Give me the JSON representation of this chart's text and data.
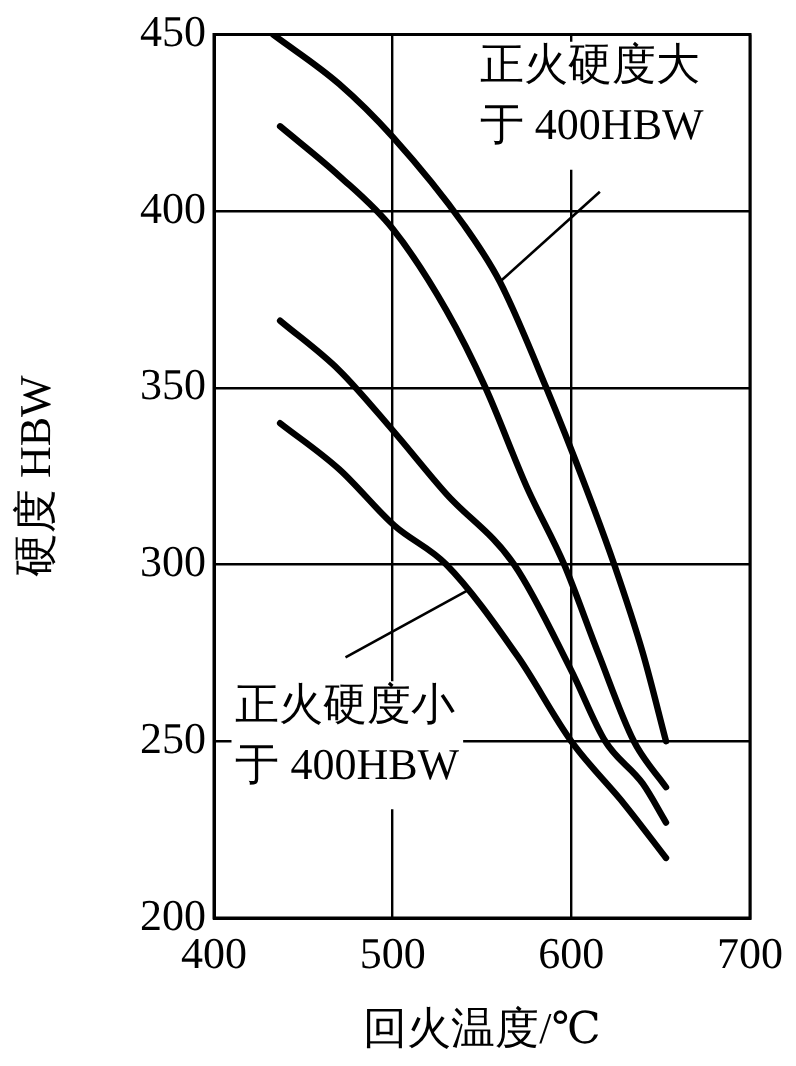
{
  "chart_data": {
    "type": "line",
    "xlabel": "回火温度/℃",
    "ylabel": "硬度 HBW",
    "xlim": [
      400,
      700
    ],
    "xticks": [
      400,
      500,
      600,
      700
    ],
    "ylim": [
      200,
      450
    ],
    "yticks": [
      200,
      250,
      300,
      350,
      400,
      450
    ],
    "grid": true,
    "legend": false,
    "marker": "none",
    "line_style": "solid",
    "series": [
      {
        "color": "#000000",
        "x": [
          433,
          470,
          500,
          540,
          560,
          586,
          608,
          624,
          640,
          653
        ],
        "values": [
          450,
          436,
          421,
          396,
          380,
          350,
          322,
          300,
          275,
          250
        ]
      },
      {
        "color": "#000000",
        "x": [
          437,
          470,
          500,
          530,
          552,
          575,
          596,
          615,
          635,
          653
        ],
        "values": [
          424,
          410,
          395,
          372,
          350,
          322,
          300,
          275,
          250,
          237
        ]
      },
      {
        "color": "#000000",
        "x": [
          437,
          470,
          500,
          530,
          568,
          600,
          619,
          640,
          653
        ],
        "values": [
          369,
          355,
          338,
          320,
          300,
          270,
          250,
          238,
          227
        ]
      },
      {
        "color": "#000000",
        "x": [
          437,
          470,
          501,
          530,
          570,
          600,
          630,
          653
        ],
        "values": [
          340,
          327,
          311,
          300,
          274,
          250,
          232,
          217
        ]
      }
    ],
    "annotations": [
      {
        "text": "正火硬度大于 400HBW",
        "x": 560,
        "y": 380
      },
      {
        "text": "正火硬度小于 400HBW",
        "x": 543,
        "y": 293
      }
    ]
  }
}
